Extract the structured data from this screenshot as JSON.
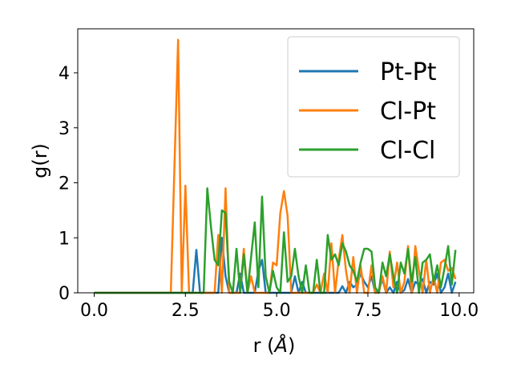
{
  "chart_data": {
    "type": "line",
    "title": "",
    "xlabel_main": "r (",
    "xlabel_unit": "Å",
    "xlabel_tail": ")",
    "ylabel": "g(r)",
    "xlim": [
      -0.45,
      10.4
    ],
    "ylim": [
      0,
      4.8
    ],
    "xticks": [
      0.0,
      2.5,
      5.0,
      7.5,
      10.0
    ],
    "xtick_labels": [
      "0.0",
      "2.5",
      "5.0",
      "7.5",
      "10.0"
    ],
    "yticks": [
      0,
      1,
      2,
      3,
      4
    ],
    "ytick_labels": [
      "0",
      "1",
      "2",
      "3",
      "4"
    ],
    "grid": false,
    "legend_position": "top-right",
    "series": [
      {
        "name": "Pt-Pt",
        "color": "#1f77b4",
        "x": [
          0.0,
          2.7,
          2.8,
          2.9,
          3.4,
          3.5,
          3.6,
          3.7,
          3.9,
          4.0,
          4.1,
          4.4,
          4.5,
          4.6,
          4.7,
          5.4,
          5.5,
          5.6,
          5.7,
          5.8,
          6.7,
          6.8,
          6.9,
          7.0,
          7.1,
          7.2,
          7.3,
          7.4,
          7.5,
          7.6,
          7.7,
          7.8,
          7.9,
          8.0,
          8.1,
          8.2,
          8.3,
          8.4,
          8.5,
          8.6,
          8.7,
          8.8,
          8.9,
          9.0,
          9.1,
          9.2,
          9.3,
          9.4,
          9.5,
          9.6,
          9.7,
          9.8,
          9.9
        ],
        "y": [
          0.0,
          0.0,
          0.78,
          0.0,
          0.0,
          1.0,
          0.3,
          0.0,
          0.0,
          0.35,
          0.0,
          0.0,
          0.4,
          0.6,
          0.0,
          0.0,
          0.3,
          0.0,
          0.2,
          0.0,
          0.0,
          0.12,
          0.0,
          0.2,
          0.1,
          0.15,
          0.35,
          0.2,
          0.1,
          0.3,
          0.0,
          0.05,
          0.25,
          0.0,
          0.1,
          0.0,
          0.2,
          0.0,
          0.05,
          0.25,
          0.0,
          0.2,
          0.15,
          0.25,
          0.0,
          0.2,
          0.15,
          0.35,
          0.0,
          0.1,
          0.35,
          0.0,
          0.2
        ]
      },
      {
        "name": "Cl-Pt",
        "color": "#ff7f0e",
        "x": [
          0.0,
          2.1,
          2.3,
          2.4,
          2.5,
          2.6,
          3.3,
          3.4,
          3.5,
          3.6,
          3.7,
          4.0,
          4.1,
          4.2,
          4.3,
          4.4,
          4.8,
          4.9,
          5.0,
          5.1,
          5.2,
          5.3,
          5.4,
          5.5,
          6.0,
          6.1,
          6.2,
          6.3,
          6.4,
          6.5,
          6.6,
          6.7,
          6.8,
          6.9,
          7.0,
          7.1,
          7.2,
          7.3,
          7.4,
          7.5,
          7.6,
          7.7,
          7.8,
          7.9,
          8.0,
          8.1,
          8.2,
          8.3,
          8.4,
          8.5,
          8.6,
          8.7,
          8.8,
          8.9,
          9.0,
          9.1,
          9.2,
          9.3,
          9.4,
          9.5,
          9.6,
          9.7,
          9.8,
          9.9
        ],
        "y": [
          0.0,
          0.0,
          4.6,
          0.0,
          1.95,
          0.0,
          0.0,
          1.05,
          0.0,
          1.9,
          0.0,
          0.0,
          0.8,
          0.0,
          0.3,
          0.0,
          0.0,
          0.55,
          0.5,
          1.45,
          1.85,
          1.4,
          0.0,
          0.0,
          0.0,
          0.15,
          0.0,
          0.35,
          0.0,
          0.9,
          0.0,
          0.6,
          1.05,
          0.4,
          0.0,
          0.65,
          0.0,
          0.5,
          0.0,
          0.0,
          0.5,
          0.0,
          0.0,
          0.3,
          0.0,
          0.75,
          0.1,
          0.55,
          0.0,
          0.2,
          0.85,
          0.0,
          0.85,
          0.4,
          0.0,
          0.6,
          0.0,
          0.3,
          0.0,
          0.55,
          0.6,
          0.4,
          0.45,
          0.25
        ]
      },
      {
        "name": "Cl-Cl",
        "color": "#2ca02c",
        "x": [
          0.0,
          2.8,
          3.0,
          3.1,
          3.2,
          3.3,
          3.4,
          3.5,
          3.6,
          3.7,
          3.8,
          3.9,
          4.0,
          4.1,
          4.2,
          4.3,
          4.4,
          4.5,
          4.6,
          4.7,
          4.8,
          4.9,
          5.0,
          5.1,
          5.2,
          5.3,
          5.4,
          5.5,
          5.6,
          5.7,
          5.8,
          5.9,
          6.0,
          6.1,
          6.2,
          6.3,
          6.4,
          6.5,
          6.6,
          6.7,
          6.8,
          6.9,
          7.0,
          7.1,
          7.2,
          7.3,
          7.4,
          7.5,
          7.6,
          7.7,
          7.8,
          7.9,
          8.0,
          8.1,
          8.2,
          8.3,
          8.4,
          8.5,
          8.6,
          8.7,
          8.8,
          8.9,
          9.0,
          9.1,
          9.2,
          9.3,
          9.4,
          9.5,
          9.6,
          9.7,
          9.8,
          9.9
        ],
        "y": [
          0.0,
          0.0,
          0.0,
          1.9,
          1.2,
          0.6,
          0.5,
          1.5,
          1.45,
          0.2,
          0.0,
          0.8,
          0.0,
          0.7,
          0.0,
          0.65,
          1.28,
          0.1,
          1.75,
          0.3,
          0.0,
          0.4,
          0.1,
          0.0,
          1.1,
          0.2,
          0.3,
          0.8,
          0.3,
          0.0,
          0.5,
          0.0,
          0.0,
          0.6,
          0.0,
          0.0,
          1.05,
          0.6,
          0.7,
          0.5,
          0.9,
          0.75,
          0.5,
          0.4,
          0.2,
          0.55,
          0.8,
          0.8,
          0.75,
          0.1,
          0.0,
          0.55,
          0.3,
          0.7,
          0.3,
          0.0,
          0.55,
          0.35,
          0.8,
          0.2,
          0.65,
          0.0,
          0.55,
          0.6,
          0.7,
          0.2,
          0.5,
          0.1,
          0.45,
          0.85,
          0.15,
          0.78
        ]
      }
    ]
  }
}
